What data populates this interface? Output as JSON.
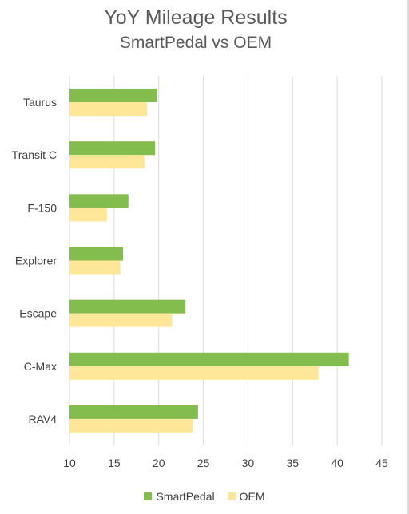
{
  "chart_data": {
    "type": "bar",
    "orientation": "horizontal",
    "title": "YoY Mileage Results",
    "subtitle": "SmartPedal vs OEM",
    "categories": [
      "Taurus",
      "Transit C",
      "F-150",
      "Explorer",
      "Escape",
      "C-Max",
      "RAV4"
    ],
    "series": [
      {
        "name": "SmartPedal",
        "color": "#82bd4d",
        "values": [
          19.8,
          19.6,
          16.6,
          16.0,
          23.0,
          41.3,
          24.4
        ]
      },
      {
        "name": "OEM",
        "color": "#ffe699",
        "values": [
          18.7,
          18.4,
          14.2,
          15.7,
          21.5,
          37.9,
          23.8
        ]
      }
    ],
    "xlim": [
      10,
      45
    ],
    "xticks": [
      10,
      15,
      20,
      25,
      30,
      35,
      40,
      45
    ],
    "grid": true,
    "legend": "bottom"
  }
}
